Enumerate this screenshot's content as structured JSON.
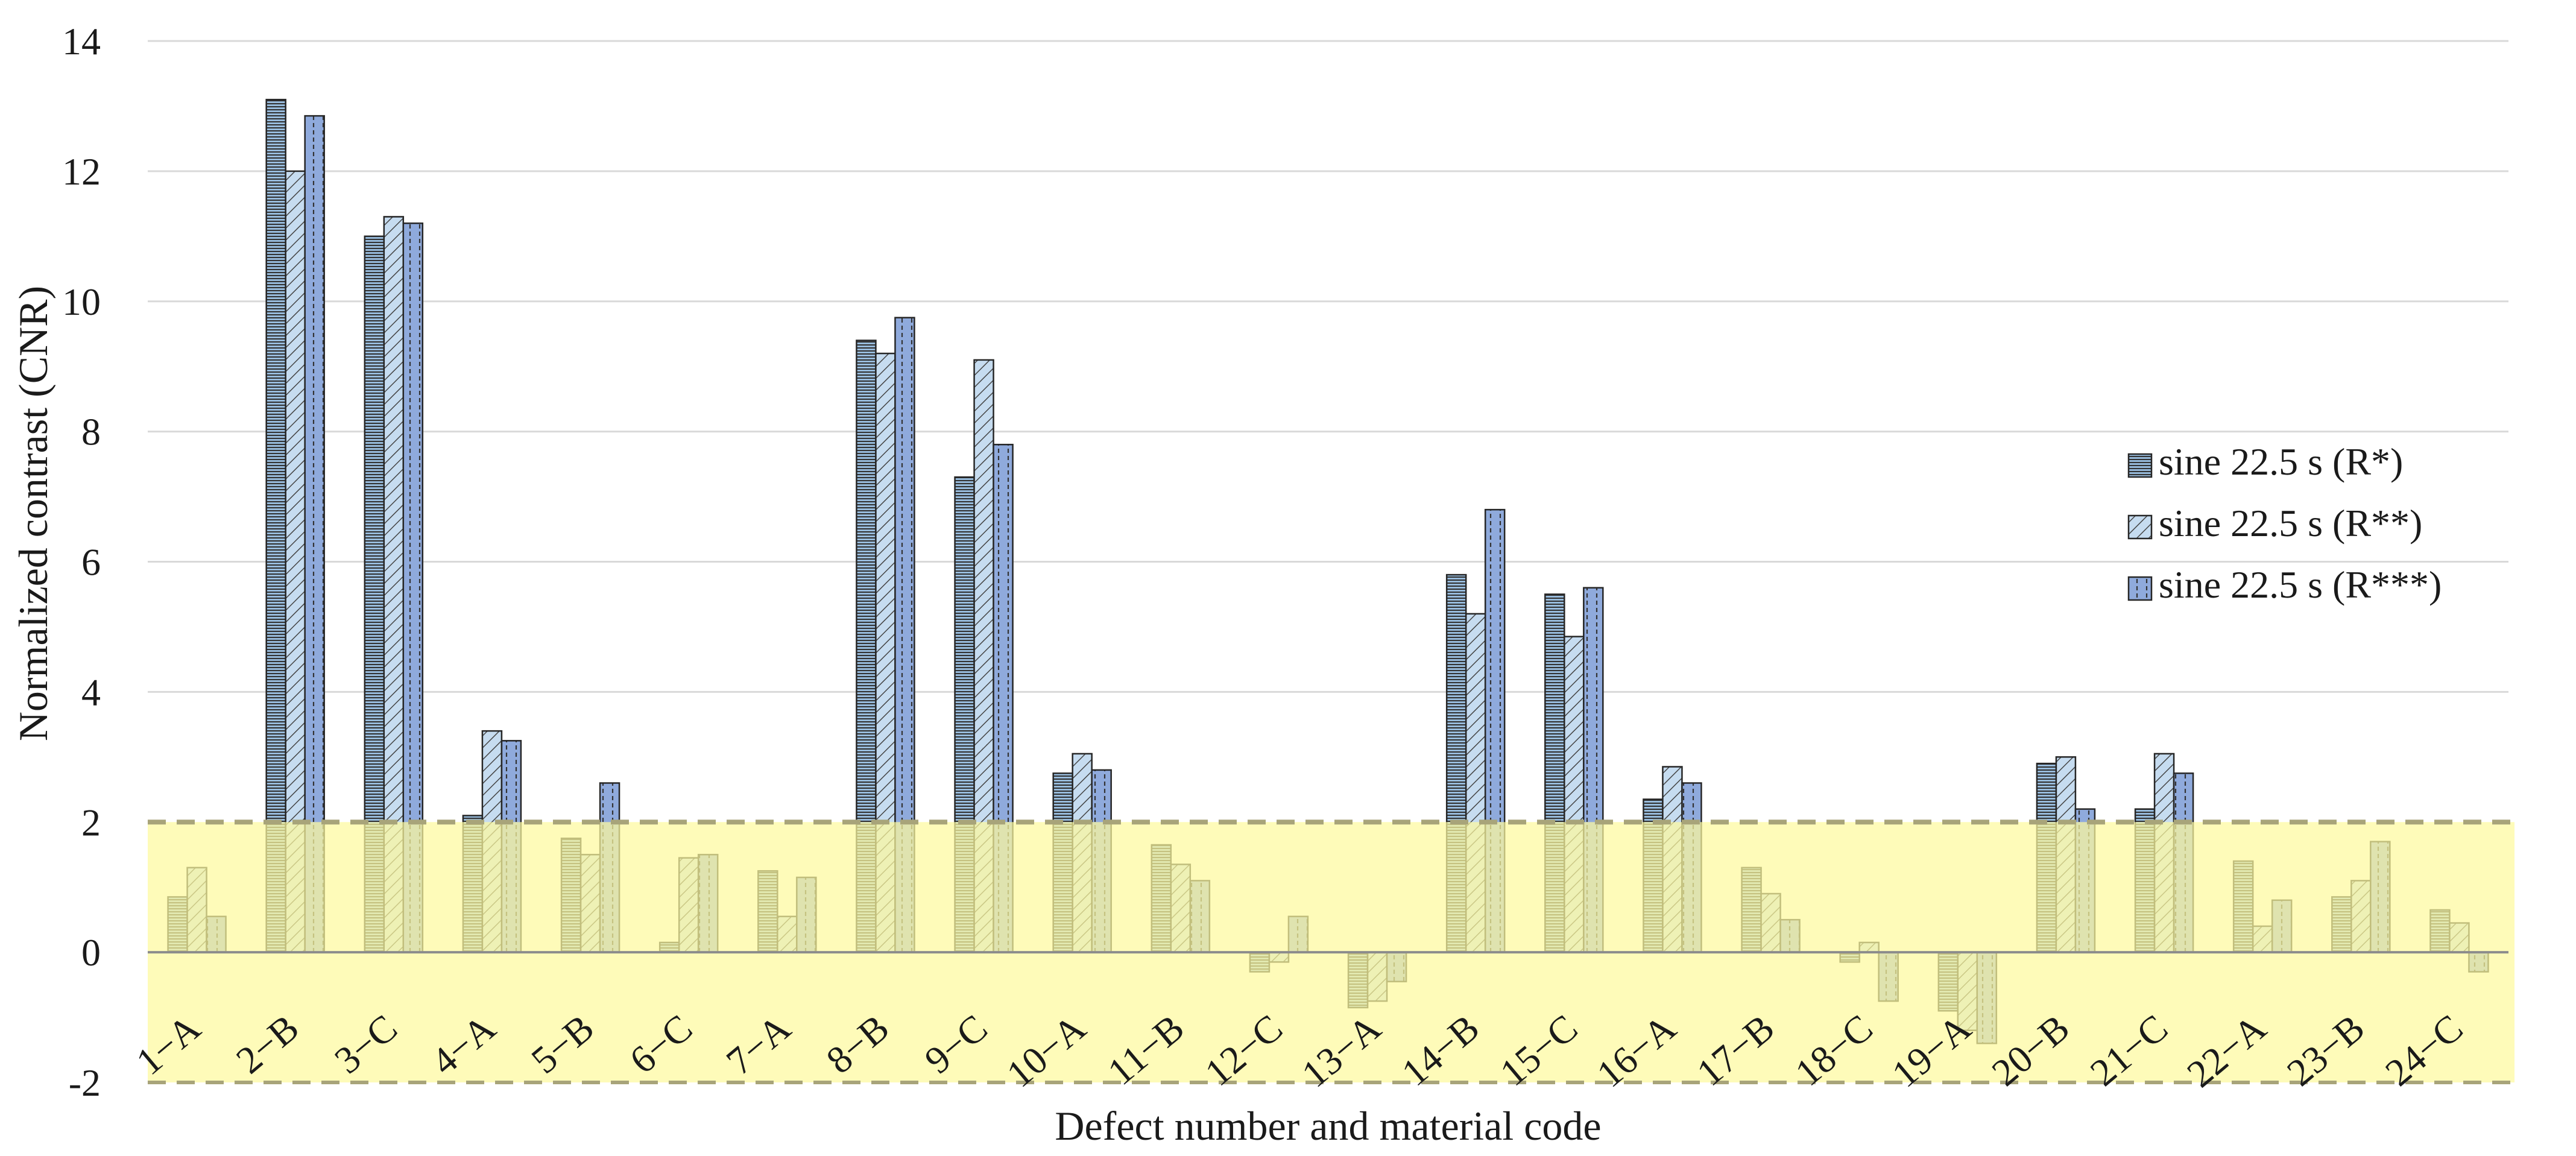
{
  "chart_data": {
    "type": "bar",
    "title": "",
    "xlabel": "Defect number and material code",
    "ylabel": "Normalized contrast (CNR)",
    "ylim": [
      -2,
      14
    ],
    "yticks": [
      -2,
      0,
      2,
      4,
      6,
      8,
      10,
      12,
      14
    ],
    "grid": true,
    "legend_position": "right",
    "threshold_band": {
      "from": -2,
      "to": 2,
      "color": "#fdfa9e",
      "line_color": "#a8a47a"
    },
    "categories": [
      "1−A",
      "2−B",
      "3−C",
      "4−A",
      "5−B",
      "6−C",
      "7−A",
      "8−B",
      "9−C",
      "10−A",
      "11−B",
      "12−C",
      "13−A",
      "14−B",
      "15−C",
      "16−A",
      "17−B",
      "18−C",
      "19−A",
      "20−B",
      "21−C",
      "22−A",
      "23−B",
      "24−C"
    ],
    "series": [
      {
        "name": "sine 22.5 s (R*)",
        "pattern": "horizontal",
        "color": "#9dc3e6",
        "values": [
          0.85,
          13.1,
          11.0,
          2.1,
          1.75,
          0.15,
          1.25,
          9.4,
          7.3,
          2.75,
          1.65,
          -0.3,
          -0.85,
          5.8,
          5.5,
          2.35,
          1.3,
          -0.15,
          -0.9,
          2.9,
          2.2,
          1.4,
          0.85,
          0.65
        ]
      },
      {
        "name": "sine 22.5 s (R**)",
        "pattern": "diagonal",
        "color": "#bdd7ee",
        "values": [
          1.3,
          12.0,
          11.3,
          3.4,
          1.5,
          1.45,
          0.55,
          9.2,
          9.1,
          3.05,
          1.35,
          -0.15,
          -0.75,
          5.2,
          4.85,
          2.85,
          0.9,
          0.15,
          -1.2,
          3.0,
          3.05,
          0.4,
          1.1,
          0.45
        ]
      },
      {
        "name": "sine 22.5 s (R***)",
        "pattern": "dotted-dense",
        "color": "#8faadc",
        "values": [
          0.55,
          12.85,
          11.2,
          3.25,
          2.6,
          1.5,
          1.15,
          9.75,
          7.8,
          2.8,
          1.1,
          0.55,
          -0.45,
          6.8,
          5.6,
          2.6,
          0.5,
          -0.75,
          -1.4,
          2.2,
          2.75,
          0.8,
          1.7,
          -0.3
        ]
      }
    ]
  }
}
